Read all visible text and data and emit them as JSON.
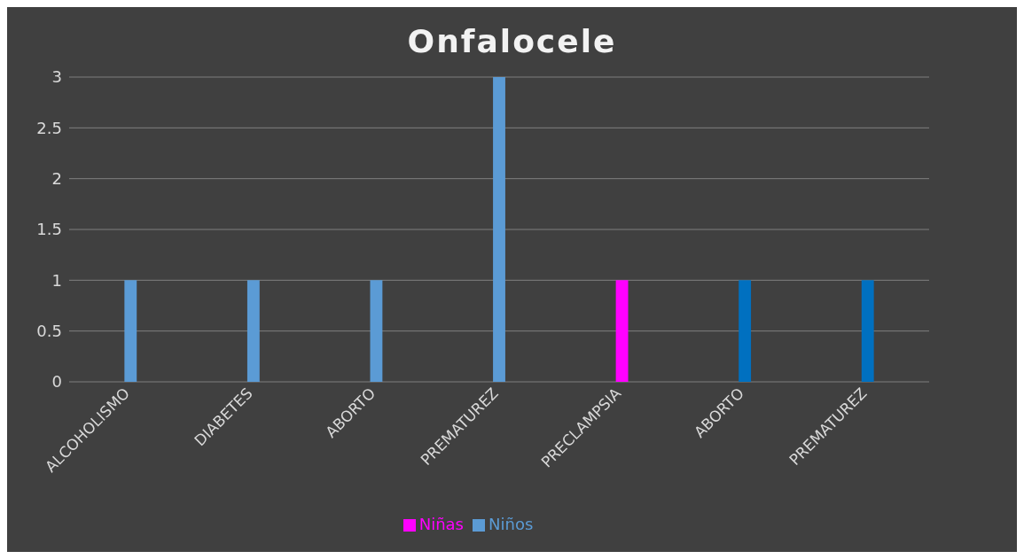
{
  "chart_data": {
    "type": "bar",
    "title": "Onfalocele",
    "categories": [
      "ALCOHOLISMO",
      "DIABETES",
      "ABORTO",
      "PREMATUREZ",
      "PRECLAMPSIA",
      "ABORTO",
      "PREMATUREZ"
    ],
    "series": [
      {
        "name": "Niños",
        "color": "#5b9bd5",
        "colors": [
          "#5b9bd5",
          "#5b9bd5",
          "#5b9bd5",
          "#5b9bd5",
          "#5b9bd5",
          "#0070c0",
          "#0070c0"
        ],
        "values": [
          1,
          1,
          1,
          3,
          null,
          1,
          1
        ]
      },
      {
        "name": "Niñas",
        "color": "#ff00ff",
        "values": [
          null,
          null,
          null,
          null,
          1,
          null,
          null
        ]
      }
    ],
    "stacked": true,
    "ylim": [
      0,
      3
    ],
    "yticks": [
      0,
      0.5,
      1,
      1.5,
      2,
      2.5,
      3
    ],
    "grid": "y",
    "legend": "bottom"
  }
}
